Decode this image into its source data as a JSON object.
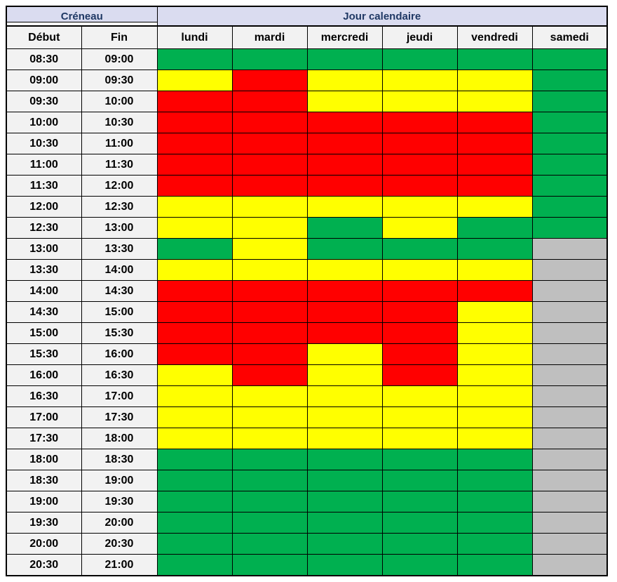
{
  "header": {
    "creneau_label": "Créneau",
    "jour_label": "Jour calendaire"
  },
  "columns": {
    "debut_label": "Début",
    "fin_label": "Fin"
  },
  "colors": {
    "green": "#00B050",
    "yellow": "#FFFF00",
    "red": "#FF0000",
    "gray": "#BFBFBF",
    "header_bg": "#DADCF0",
    "header_text": "#1F3864",
    "label_bg": "#F2F2F2",
    "border": "#000000"
  },
  "chart_data": {
    "type": "heatmap",
    "title": "Jour calendaire / Créneau availability grid",
    "x_categories": [
      "lundi",
      "mardi",
      "mercredi",
      "jeudi",
      "vendredi",
      "samedi"
    ],
    "value_categories": [
      "green",
      "yellow",
      "red",
      "gray"
    ],
    "legend": "none shown",
    "slots": [
      {
        "debut": "08:30",
        "fin": "09:00",
        "values": [
          "green",
          "green",
          "green",
          "green",
          "green",
          "green"
        ]
      },
      {
        "debut": "09:00",
        "fin": "09:30",
        "values": [
          "yellow",
          "red",
          "yellow",
          "yellow",
          "yellow",
          "green"
        ]
      },
      {
        "debut": "09:30",
        "fin": "10:00",
        "values": [
          "red",
          "red",
          "yellow",
          "yellow",
          "yellow",
          "green"
        ]
      },
      {
        "debut": "10:00",
        "fin": "10:30",
        "values": [
          "red",
          "red",
          "red",
          "red",
          "red",
          "green"
        ]
      },
      {
        "debut": "10:30",
        "fin": "11:00",
        "values": [
          "red",
          "red",
          "red",
          "red",
          "red",
          "green"
        ]
      },
      {
        "debut": "11:00",
        "fin": "11:30",
        "values": [
          "red",
          "red",
          "red",
          "red",
          "red",
          "green"
        ]
      },
      {
        "debut": "11:30",
        "fin": "12:00",
        "values": [
          "red",
          "red",
          "red",
          "red",
          "red",
          "green"
        ]
      },
      {
        "debut": "12:00",
        "fin": "12:30",
        "values": [
          "yellow",
          "yellow",
          "yellow",
          "yellow",
          "yellow",
          "green"
        ]
      },
      {
        "debut": "12:30",
        "fin": "13:00",
        "values": [
          "yellow",
          "yellow",
          "green",
          "yellow",
          "green",
          "green"
        ]
      },
      {
        "debut": "13:00",
        "fin": "13:30",
        "values": [
          "green",
          "yellow",
          "green",
          "green",
          "green",
          "gray"
        ]
      },
      {
        "debut": "13:30",
        "fin": "14:00",
        "values": [
          "yellow",
          "yellow",
          "yellow",
          "yellow",
          "yellow",
          "gray"
        ]
      },
      {
        "debut": "14:00",
        "fin": "14:30",
        "values": [
          "red",
          "red",
          "red",
          "red",
          "red",
          "gray"
        ]
      },
      {
        "debut": "14:30",
        "fin": "15:00",
        "values": [
          "red",
          "red",
          "red",
          "red",
          "yellow",
          "gray"
        ]
      },
      {
        "debut": "15:00",
        "fin": "15:30",
        "values": [
          "red",
          "red",
          "red",
          "red",
          "yellow",
          "gray"
        ]
      },
      {
        "debut": "15:30",
        "fin": "16:00",
        "values": [
          "red",
          "red",
          "yellow",
          "red",
          "yellow",
          "gray"
        ]
      },
      {
        "debut": "16:00",
        "fin": "16:30",
        "values": [
          "yellow",
          "red",
          "yellow",
          "red",
          "yellow",
          "gray"
        ]
      },
      {
        "debut": "16:30",
        "fin": "17:00",
        "values": [
          "yellow",
          "yellow",
          "yellow",
          "yellow",
          "yellow",
          "gray"
        ]
      },
      {
        "debut": "17:00",
        "fin": "17:30",
        "values": [
          "yellow",
          "yellow",
          "yellow",
          "yellow",
          "yellow",
          "gray"
        ]
      },
      {
        "debut": "17:30",
        "fin": "18:00",
        "values": [
          "yellow",
          "yellow",
          "yellow",
          "yellow",
          "yellow",
          "gray"
        ]
      },
      {
        "debut": "18:00",
        "fin": "18:30",
        "values": [
          "green",
          "green",
          "green",
          "green",
          "green",
          "gray"
        ]
      },
      {
        "debut": "18:30",
        "fin": "19:00",
        "values": [
          "green",
          "green",
          "green",
          "green",
          "green",
          "gray"
        ]
      },
      {
        "debut": "19:00",
        "fin": "19:30",
        "values": [
          "green",
          "green",
          "green",
          "green",
          "green",
          "gray"
        ]
      },
      {
        "debut": "19:30",
        "fin": "20:00",
        "values": [
          "green",
          "green",
          "green",
          "green",
          "green",
          "gray"
        ]
      },
      {
        "debut": "20:00",
        "fin": "20:30",
        "values": [
          "green",
          "green",
          "green",
          "green",
          "green",
          "gray"
        ]
      },
      {
        "debut": "20:30",
        "fin": "21:00",
        "values": [
          "green",
          "green",
          "green",
          "green",
          "green",
          "gray"
        ]
      }
    ]
  }
}
